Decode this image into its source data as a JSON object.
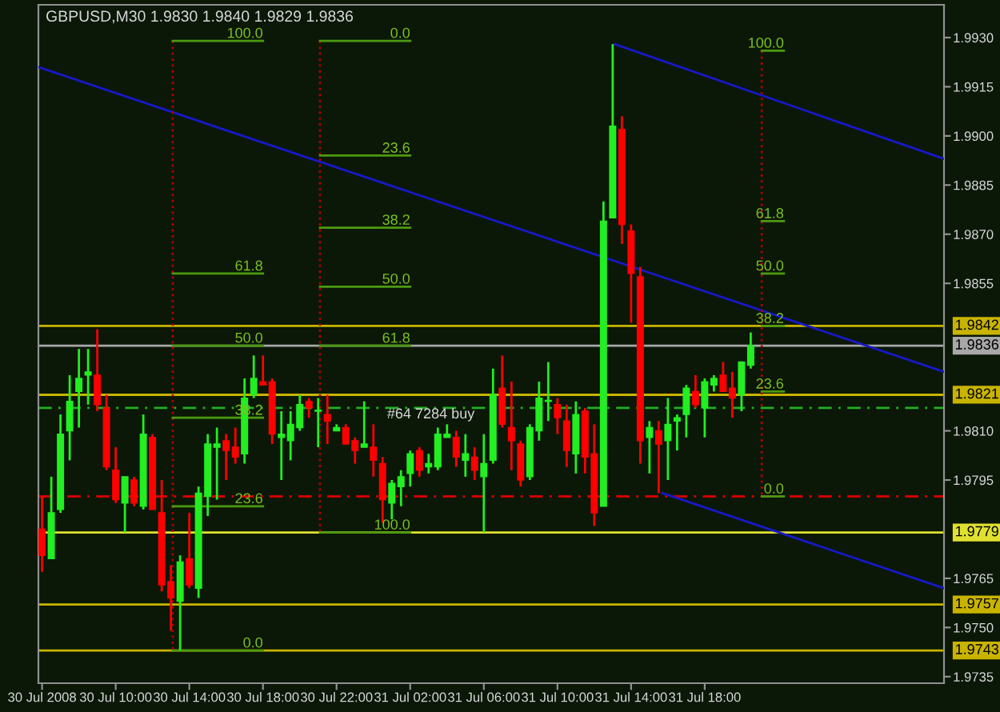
{
  "chart_data": {
    "type": "candlestick",
    "title": "GBPUSD,M30 1.9830 1.9840 1.9829 1.9836",
    "x": [
      "2008-07-30T06:00",
      "2008-07-30T06:30",
      "2008-07-30T07:00",
      "2008-07-30T07:30",
      "2008-07-30T08:00",
      "2008-07-30T08:30",
      "2008-07-30T09:00",
      "2008-07-30T09:30",
      "2008-07-30T10:00",
      "2008-07-30T10:30",
      "2008-07-30T11:00",
      "2008-07-30T11:30",
      "2008-07-30T12:00",
      "2008-07-30T12:30",
      "2008-07-30T13:00",
      "2008-07-30T13:30",
      "2008-07-30T14:00",
      "2008-07-30T14:30",
      "2008-07-30T15:00",
      "2008-07-30T15:30",
      "2008-07-30T16:00",
      "2008-07-30T16:30",
      "2008-07-30T17:00",
      "2008-07-30T17:30",
      "2008-07-30T18:00",
      "2008-07-30T18:30",
      "2008-07-30T19:00",
      "2008-07-30T19:30",
      "2008-07-30T20:00",
      "2008-07-30T20:30",
      "2008-07-30T21:00",
      "2008-07-30T21:30",
      "2008-07-30T22:00",
      "2008-07-30T22:30",
      "2008-07-30T23:00",
      "2008-07-30T23:30",
      "2008-07-31T00:00",
      "2008-07-31T00:30",
      "2008-07-31T01:00",
      "2008-07-31T01:30",
      "2008-07-31T02:00",
      "2008-07-31T02:30",
      "2008-07-31T03:00",
      "2008-07-31T03:30",
      "2008-07-31T04:00",
      "2008-07-31T04:30",
      "2008-07-31T05:00",
      "2008-07-31T05:30",
      "2008-07-31T06:00",
      "2008-07-31T06:30",
      "2008-07-31T07:00",
      "2008-07-31T07:30",
      "2008-07-31T08:00",
      "2008-07-31T08:30",
      "2008-07-31T09:00",
      "2008-07-31T09:30",
      "2008-07-31T10:00",
      "2008-07-31T10:30",
      "2008-07-31T11:00",
      "2008-07-31T11:30",
      "2008-07-31T12:00",
      "2008-07-31T12:30",
      "2008-07-31T13:00",
      "2008-07-31T13:30",
      "2008-07-31T14:00",
      "2008-07-31T14:30",
      "2008-07-31T15:00",
      "2008-07-31T15:30",
      "2008-07-31T16:00",
      "2008-07-31T16:30",
      "2008-07-31T17:00",
      "2008-07-31T17:30",
      "2008-07-31T18:00",
      "2008-07-31T18:30",
      "2008-07-31T19:00",
      "2008-07-31T19:30",
      "2008-07-31T20:00",
      "2008-07-31T20:30"
    ],
    "ohlc": [
      [
        1.978,
        1.979,
        1.9767,
        1.9772
      ],
      [
        1.9771,
        1.9796,
        1.9771,
        1.9785
      ],
      [
        1.9786,
        1.9815,
        1.9785,
        1.9809
      ],
      [
        1.981,
        1.9827,
        1.9801,
        1.9819
      ],
      [
        1.9822,
        1.9835,
        1.9811,
        1.9826
      ],
      [
        1.9827,
        1.9835,
        1.9818,
        1.9828
      ],
      [
        1.9827,
        1.9841,
        1.9816,
        1.9818
      ],
      [
        1.9817,
        1.9821,
        1.9798,
        1.9799
      ],
      [
        1.9798,
        1.9805,
        1.9788,
        1.9789
      ],
      [
        1.9788,
        1.9796,
        1.9779,
        1.9796
      ],
      [
        1.9795,
        1.9796,
        1.9787,
        1.9788
      ],
      [
        1.9787,
        1.9815,
        1.9786,
        1.9809
      ],
      [
        1.9808,
        1.9809,
        1.9786,
        1.9786
      ],
      [
        1.9785,
        1.9795,
        1.9761,
        1.9763
      ],
      [
        1.9764,
        1.9769,
        1.9749,
        1.9759
      ],
      [
        1.9758,
        1.9772,
        1.9743,
        1.977
      ],
      [
        1.9771,
        1.9785,
        1.9762,
        1.9763
      ],
      [
        1.9762,
        1.9793,
        1.9759,
        1.9791
      ],
      [
        1.979,
        1.9809,
        1.9784,
        1.9806
      ],
      [
        1.9805,
        1.9811,
        1.9789,
        1.9806
      ],
      [
        1.9807,
        1.9809,
        1.9795,
        1.9804
      ],
      [
        1.9805,
        1.9811,
        1.98,
        1.9802
      ],
      [
        1.9803,
        1.9826,
        1.98,
        1.982
      ],
      [
        1.9821,
        1.9833,
        1.982,
        1.9826
      ],
      [
        1.9825,
        1.9833,
        1.9824,
        1.9824
      ],
      [
        1.9825,
        1.9826,
        1.9806,
        1.9809
      ],
      [
        1.9808,
        1.9816,
        1.9795,
        1.9809
      ],
      [
        1.9807,
        1.9816,
        1.9801,
        1.9812
      ],
      [
        1.9811,
        1.9821,
        1.981,
        1.9818
      ],
      [
        1.9819,
        1.982,
        1.9814,
        1.9817
      ],
      [
        1.9816,
        1.982,
        1.9805,
        1.9816
      ],
      [
        1.9815,
        1.9821,
        1.9806,
        1.9813
      ],
      [
        1.981,
        1.9812,
        1.981,
        1.9811
      ],
      [
        1.9811,
        1.9812,
        1.9806,
        1.9806
      ],
      [
        1.9807,
        1.9808,
        1.98,
        1.9804
      ],
      [
        1.9805,
        1.9819,
        1.9805,
        1.9806
      ],
      [
        1.9805,
        1.9812,
        1.9796,
        1.9801
      ],
      [
        1.98,
        1.9802,
        1.9782,
        1.9789
      ],
      [
        1.9788,
        1.9795,
        1.9783,
        1.9794
      ],
      [
        1.9793,
        1.9798,
        1.9787,
        1.9796
      ],
      [
        1.9797,
        1.9804,
        1.9793,
        1.9803
      ],
      [
        1.9804,
        1.9805,
        1.9796,
        1.9798
      ],
      [
        1.9799,
        1.9803,
        1.9797,
        1.98
      ],
      [
        1.9799,
        1.9811,
        1.9798,
        1.9809
      ],
      [
        1.9808,
        1.9812,
        1.9808,
        1.9809
      ],
      [
        1.9808,
        1.981,
        1.9799,
        1.9802
      ],
      [
        1.9801,
        1.9809,
        1.9796,
        1.9803
      ],
      [
        1.9802,
        1.9805,
        1.9795,
        1.9798
      ],
      [
        1.9796,
        1.9809,
        1.9779,
        1.98
      ],
      [
        1.9801,
        1.9829,
        1.98,
        1.9821
      ],
      [
        1.9823,
        1.9833,
        1.9811,
        1.9812
      ],
      [
        1.9811,
        1.9825,
        1.9798,
        1.9807
      ],
      [
        1.9806,
        1.9807,
        1.9793,
        1.9795
      ],
      [
        1.9796,
        1.9812,
        1.9795,
        1.9811
      ],
      [
        1.981,
        1.9825,
        1.9807,
        1.982
      ],
      [
        1.9819,
        1.9831,
        1.9813,
        1.9819
      ],
      [
        1.9818,
        1.982,
        1.9809,
        1.9814
      ],
      [
        1.9813,
        1.9818,
        1.9799,
        1.9804
      ],
      [
        1.9803,
        1.9819,
        1.9797,
        1.9815
      ],
      [
        1.9816,
        1.9817,
        1.9797,
        1.9802
      ],
      [
        1.9803,
        1.9812,
        1.9781,
        1.9785
      ],
      [
        1.9787,
        1.988,
        1.9787,
        1.9874
      ],
      [
        1.9875,
        1.9928,
        1.9875,
        1.9903
      ],
      [
        1.9902,
        1.9906,
        1.9867,
        1.9873
      ],
      [
        1.9871,
        1.9873,
        1.9843,
        1.9858
      ],
      [
        1.9857,
        1.986,
        1.98,
        1.9807
      ],
      [
        1.9808,
        1.9813,
        1.9797,
        1.9811
      ],
      [
        1.981,
        1.9813,
        1.9791,
        1.9806
      ],
      [
        1.9807,
        1.982,
        1.9795,
        1.9812
      ],
      [
        1.9813,
        1.9815,
        1.9804,
        1.9814
      ],
      [
        1.9815,
        1.9824,
        1.9808,
        1.9823
      ],
      [
        1.9822,
        1.9827,
        1.9817,
        1.9818
      ],
      [
        1.9817,
        1.9826,
        1.9808,
        1.9825
      ],
      [
        1.9824,
        1.9827,
        1.9822,
        1.9826
      ],
      [
        1.9827,
        1.9831,
        1.9822,
        1.9822
      ],
      [
        1.9823,
        1.9828,
        1.9814,
        1.982
      ],
      [
        1.9821,
        1.9831,
        1.9816,
        1.9831
      ],
      [
        1.983,
        1.984,
        1.9829,
        1.9836
      ]
    ],
    "colors": [
      "#ff0000",
      "#22ee22",
      "#22ee22",
      "#22ee22",
      "#22ee22",
      "#22ee22",
      "#ff0000",
      "#ff0000",
      "#ff0000",
      "#22ee22",
      "#ff0000",
      "#22ee22",
      "#ff0000",
      "#ff0000",
      "#ff0000",
      "#22ee22",
      "#ff0000",
      "#22ee22",
      "#22ee22",
      "#22ee22",
      "#ff0000",
      "#ff0000",
      "#22ee22",
      "#22ee22",
      "#ff0000",
      "#ff0000",
      "#22ee22",
      "#22ee22",
      "#22ee22",
      "#ff0000",
      "#22ee22",
      "#ff0000",
      "#22ee22",
      "#ff0000",
      "#ff0000",
      "#22ee22",
      "#ff0000",
      "#ff0000",
      "#22ee22",
      "#22ee22",
      "#22ee22",
      "#ff0000",
      "#22ee22",
      "#22ee22",
      "#22ee22",
      "#ff0000",
      "#22ee22",
      "#ff0000",
      "#22ee22",
      "#22ee22",
      "#ff0000",
      "#ff0000",
      "#ff0000",
      "#22ee22",
      "#22ee22",
      "#22ee22",
      "#ff0000",
      "#ff0000",
      "#22ee22",
      "#ff0000",
      "#ff0000",
      "#22ee22",
      "#22ee22",
      "#ff0000",
      "#ff0000",
      "#ff0000",
      "#22ee22",
      "#ff0000",
      "#22ee22",
      "#22ee22",
      "#22ee22",
      "#ff0000",
      "#22ee22",
      "#22ee22",
      "#ff0000",
      "#ff0000",
      "#22ee22",
      "#22ee22"
    ],
    "series": [
      {
        "type": "line",
        "x": [
          "2008-07-30T05:48",
          "2008-08-01T07:00"
        ],
        "values": [
          1.9921,
          1.9828
        ],
        "color": "#1818c8"
      },
      {
        "type": "line",
        "x": [
          "2008-07-31T13:06",
          "2008-08-01T07:00"
        ],
        "values": [
          1.9928,
          1.9893
        ],
        "color": "#1818c8"
      },
      {
        "type": "line",
        "x": [
          "2008-07-31T15:42",
          "2008-08-01T07:00"
        ],
        "values": [
          1.9791,
          1.9762
        ],
        "color": "#1818c8"
      },
      {
        "type": "line",
        "x": [
          "2008-07-30T13:06",
          "2008-07-30T13:06"
        ],
        "values": [
          1.9929,
          1.9743
        ],
        "color": "#b00000",
        "line_style": "dotted"
      },
      {
        "type": "line",
        "x": [
          "2008-07-30T21:06",
          "2008-07-30T21:06"
        ],
        "values": [
          1.9929,
          1.9779
        ],
        "color": "#b00000",
        "line_style": "dotted"
      },
      {
        "type": "line",
        "x": [
          "2008-07-31T21:06",
          "2008-07-31T21:06"
        ],
        "values": [
          1.9926,
          1.979
        ],
        "color": "#b00000",
        "line_style": "dotted"
      },
      {
        "type": "line",
        "x": [
          "2008-07-30T13:06",
          "2008-07-30T18:00"
        ],
        "values": [
          1.9929,
          1.9929
        ],
        "color": "#4c9a10"
      },
      {
        "type": "line",
        "x": [
          "2008-07-30T13:06",
          "2008-07-30T18:00"
        ],
        "values": [
          1.9858,
          1.9858
        ],
        "color": "#4c9a10"
      },
      {
        "type": "line",
        "x": [
          "2008-07-30T13:06",
          "2008-07-30T18:00"
        ],
        "values": [
          1.9836,
          1.9836
        ],
        "color": "#4c9a10"
      },
      {
        "type": "line",
        "x": [
          "2008-07-30T13:06",
          "2008-07-30T18:00"
        ],
        "values": [
          1.9814,
          1.9814
        ],
        "color": "#4c9a10"
      },
      {
        "type": "line",
        "x": [
          "2008-07-30T13:06",
          "2008-07-30T18:00"
        ],
        "values": [
          1.9787,
          1.9787
        ],
        "color": "#4c9a10"
      },
      {
        "type": "line",
        "x": [
          "2008-07-30T13:06",
          "2008-07-30T18:00"
        ],
        "values": [
          1.9743,
          1.9743
        ],
        "color": "#4c9a10"
      },
      {
        "type": "line",
        "x": [
          "2008-07-30T21:06",
          "2008-07-31T02:00"
        ],
        "values": [
          1.9929,
          1.9929
        ],
        "color": "#4c9a10"
      },
      {
        "type": "line",
        "x": [
          "2008-07-30T21:06",
          "2008-07-31T02:00"
        ],
        "values": [
          1.9894,
          1.9894
        ],
        "color": "#4c9a10"
      },
      {
        "type": "line",
        "x": [
          "2008-07-30T21:06",
          "2008-07-31T02:00"
        ],
        "values": [
          1.9872,
          1.9872
        ],
        "color": "#4c9a10"
      },
      {
        "type": "line",
        "x": [
          "2008-07-30T21:06",
          "2008-07-31T02:00"
        ],
        "values": [
          1.9854,
          1.9854
        ],
        "color": "#4c9a10"
      },
      {
        "type": "line",
        "x": [
          "2008-07-30T21:06",
          "2008-07-31T02:00"
        ],
        "values": [
          1.9836,
          1.9836
        ],
        "color": "#4c9a10"
      },
      {
        "type": "line",
        "x": [
          "2008-07-30T21:06",
          "2008-07-31T02:00"
        ],
        "values": [
          1.9779,
          1.9779
        ],
        "color": "#4c9a10"
      },
      {
        "type": "line",
        "x": [
          "2008-07-31T21:06",
          "2008-07-31T22:18"
        ],
        "values": [
          1.9926,
          1.9926
        ],
        "color": "#4c9a10"
      },
      {
        "type": "line",
        "x": [
          "2008-07-31T21:06",
          "2008-07-31T22:18"
        ],
        "values": [
          1.9874,
          1.9874
        ],
        "color": "#4c9a10"
      },
      {
        "type": "line",
        "x": [
          "2008-07-31T21:06",
          "2008-07-31T22:18"
        ],
        "values": [
          1.9858,
          1.9858
        ],
        "color": "#4c9a10"
      },
      {
        "type": "line",
        "x": [
          "2008-07-31T21:06",
          "2008-07-31T22:18"
        ],
        "values": [
          1.9842,
          1.9842
        ],
        "color": "#4c9a10"
      },
      {
        "type": "line",
        "x": [
          "2008-07-31T21:06",
          "2008-07-31T22:18"
        ],
        "values": [
          1.9822,
          1.9822
        ],
        "color": "#4c9a10"
      },
      {
        "type": "line",
        "x": [
          "2008-07-31T21:06",
          "2008-07-31T22:18"
        ],
        "values": [
          1.979,
          1.979
        ],
        "color": "#4c9a10"
      }
    ],
    "ref_lines": [
      {
        "axis": "y",
        "value": 1.9842,
        "label": "1.9842",
        "color": "#c8b400"
      },
      {
        "axis": "y",
        "value": 1.9836,
        "label": "1.9836",
        "color": "#a8a8a8"
      },
      {
        "axis": "y",
        "value": 1.9821,
        "label": "1.9821",
        "color": "#c8b400"
      },
      {
        "axis": "y",
        "value": 1.9779,
        "label": "1.9779",
        "color": "#e0e030"
      },
      {
        "axis": "y",
        "value": 1.9757,
        "label": "1.9757",
        "color": "#c8b400"
      },
      {
        "axis": "y",
        "value": 1.9743,
        "label": "1.9743",
        "color": "#c8b400"
      },
      {
        "axis": "y",
        "value": 1.9817,
        "label": "#64 7284 buy",
        "color": "#22b022",
        "line_style": "dashed"
      },
      {
        "axis": "y",
        "value": 1.979,
        "color": "#d00000",
        "line_style": "dashed"
      }
    ],
    "annotations": [
      {
        "text": "100.0",
        "x": "2008-07-30T18:00",
        "y": 1.9929
      },
      {
        "text": "61.8",
        "x": "2008-07-30T18:00",
        "y": 1.9858
      },
      {
        "text": "50.0",
        "x": "2008-07-30T18:00",
        "y": 1.9836
      },
      {
        "text": "38.2",
        "x": "2008-07-30T18:00",
        "y": 1.9814
      },
      {
        "text": "23.6",
        "x": "2008-07-30T18:00",
        "y": 1.9787
      },
      {
        "text": "0.0",
        "x": "2008-07-30T18:00",
        "y": 1.9743
      },
      {
        "text": "0.0",
        "x": "2008-07-31T02:00",
        "y": 1.9929
      },
      {
        "text": "23.6",
        "x": "2008-07-31T02:00",
        "y": 1.9894
      },
      {
        "text": "38.2",
        "x": "2008-07-31T02:00",
        "y": 1.9872
      },
      {
        "text": "50.0",
        "x": "2008-07-31T02:00",
        "y": 1.9854
      },
      {
        "text": "61.8",
        "x": "2008-07-31T02:00",
        "y": 1.9836
      },
      {
        "text": "100.0",
        "x": "2008-07-31T02:00",
        "y": 1.9779
      },
      {
        "text": "100.0",
        "x": "2008-07-31T22:18",
        "y": 1.9926
      },
      {
        "text": "61.8",
        "x": "2008-07-31T22:18",
        "y": 1.9874
      },
      {
        "text": "50.0",
        "x": "2008-07-31T22:18",
        "y": 1.9858
      },
      {
        "text": "38.2",
        "x": "2008-07-31T22:18",
        "y": 1.9842
      },
      {
        "text": "23.6",
        "x": "2008-07-31T22:18",
        "y": 1.9822
      },
      {
        "text": "0.0",
        "x": "2008-07-31T22:18",
        "y": 1.979
      }
    ],
    "xlim": [
      "2008-07-30T05:48",
      "2008-08-01T07:00"
    ],
    "ylim": [
      1.9733,
      1.994
    ],
    "xticks": [
      {
        "value": "2008-07-30T06:00",
        "label": "30 Jul 2008"
      },
      {
        "value": "2008-07-30T10:00",
        "label": "30 Jul 10:00"
      },
      {
        "value": "2008-07-30T14:00",
        "label": "30 Jul 14:00"
      },
      {
        "value": "2008-07-30T18:00",
        "label": "30 Jul 18:00"
      },
      {
        "value": "2008-07-30T22:00",
        "label": "30 Jul 22:00"
      },
      {
        "value": "2008-07-31T02:00",
        "label": "31 Jul 02:00"
      },
      {
        "value": "2008-07-31T06:00",
        "label": "31 Jul 06:00"
      },
      {
        "value": "2008-07-31T10:00",
        "label": "31 Jul 10:00"
      },
      {
        "value": "2008-07-31T14:00",
        "label": "31 Jul 14:00"
      },
      {
        "value": "2008-07-31T18:00",
        "label": "31 Jul 18:00"
      }
    ],
    "yticks": [
      {
        "value": 1.993,
        "label": "1.9930"
      },
      {
        "value": 1.9915,
        "label": "1.9915"
      },
      {
        "value": 1.99,
        "label": "1.9900"
      },
      {
        "value": 1.9885,
        "label": "1.9885"
      },
      {
        "value": 1.987,
        "label": "1.9870"
      },
      {
        "value": 1.9855,
        "label": "1.9855"
      },
      {
        "value": 1.981,
        "label": "1.9810"
      },
      {
        "value": 1.9795,
        "label": "1.9795"
      },
      {
        "value": 1.9765,
        "label": "1.9765"
      },
      {
        "value": 1.975,
        "label": "1.9750"
      },
      {
        "value": 1.9735,
        "label": "1.9735"
      }
    ]
  }
}
